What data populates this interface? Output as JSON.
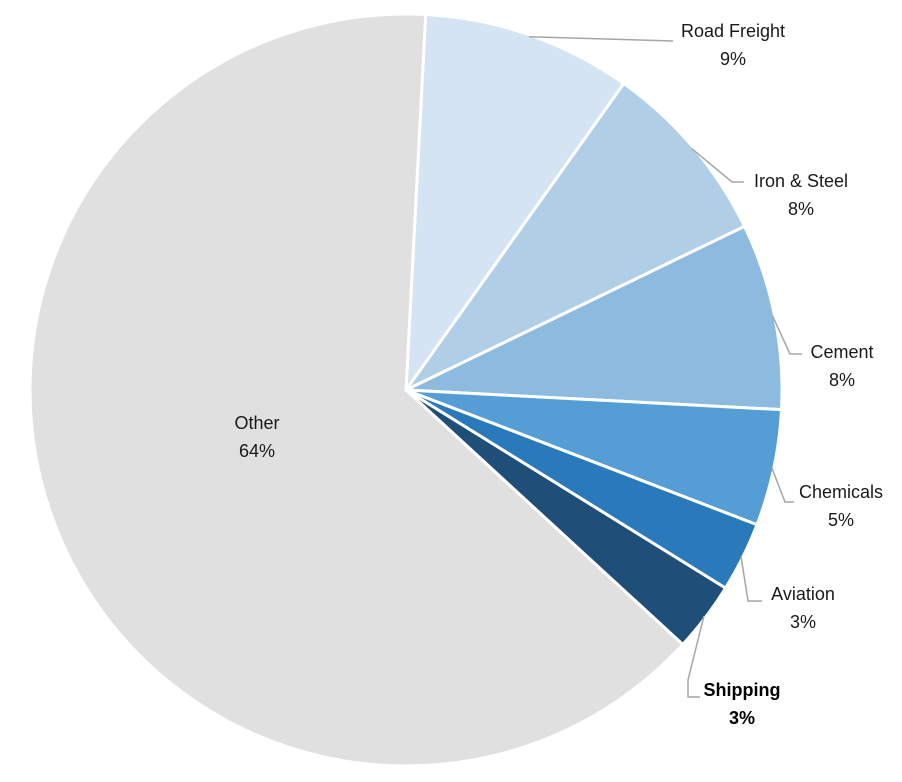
{
  "chart_data": {
    "type": "pie",
    "title": "",
    "slices": [
      {
        "label": "Road Freight",
        "percent_label": "9%",
        "value": 9,
        "color": "#d4e4f2",
        "bold": false
      },
      {
        "label": "Iron & Steel",
        "percent_label": "8%",
        "value": 8,
        "color": "#b0cfe7",
        "bold": false
      },
      {
        "label": "Cement",
        "percent_label": "8%",
        "value": 8,
        "color": "#8dbadf",
        "bold": false
      },
      {
        "label": "Chemicals",
        "percent_label": "5%",
        "value": 5,
        "color": "#559ed5",
        "bold": false
      },
      {
        "label": "Aviation",
        "percent_label": "3%",
        "value": 3,
        "color": "#2a7abb",
        "bold": false
      },
      {
        "label": "Shipping",
        "percent_label": "3%",
        "value": 3,
        "color": "#1f4e78",
        "bold": true
      },
      {
        "label": "Other",
        "percent_label": "64%",
        "value": 64,
        "color": "#e1e0e0",
        "bold": false
      }
    ],
    "start_angle_deg": 3,
    "direction": "clockwise",
    "legend": "none",
    "label_placement": "outside-with-leader-lines; Other inside"
  }
}
